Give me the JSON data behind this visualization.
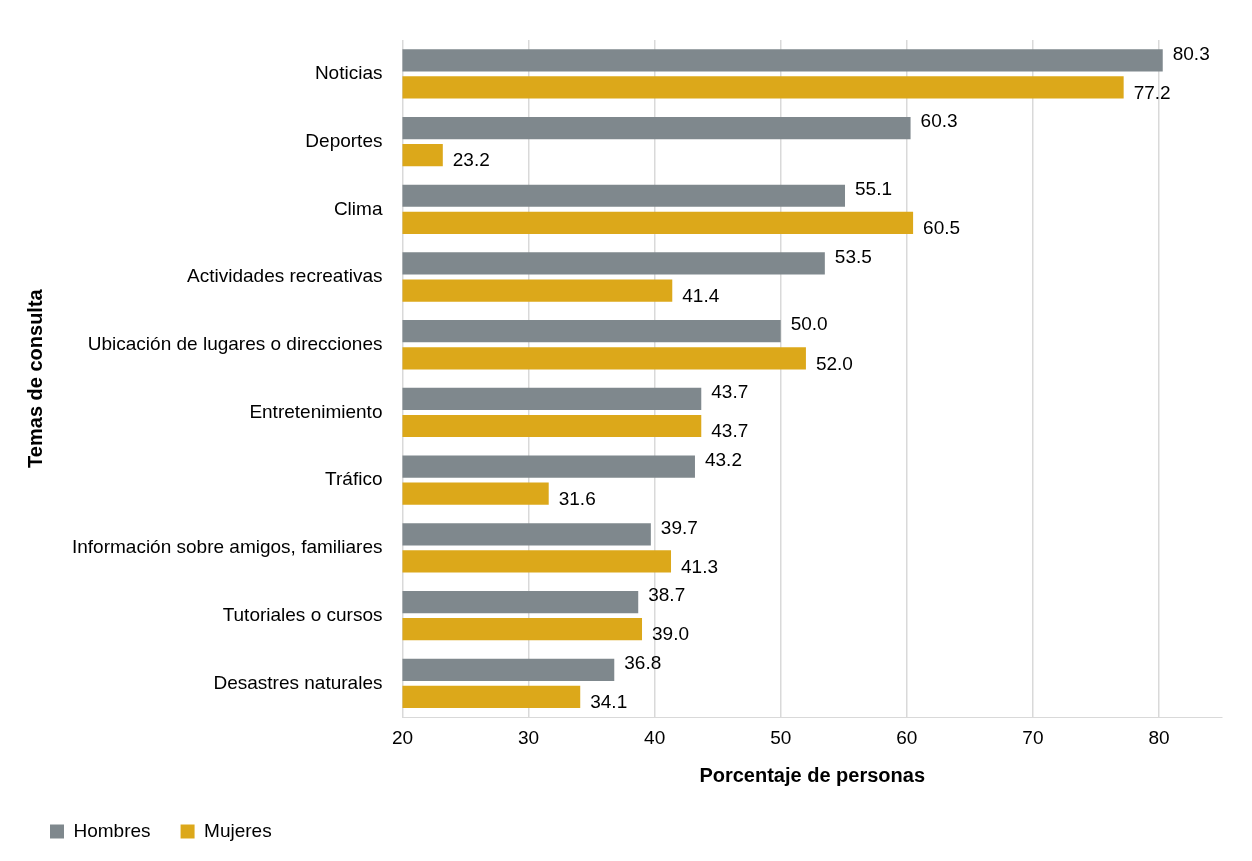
{
  "chart_data": {
    "type": "bar",
    "orientation": "horizontal",
    "xlabel": "Porcentaje de personas",
    "ylabel": "Temas de consulta",
    "categories": [
      "Noticias",
      "Deportes",
      "Clima",
      "Actividades recreativas",
      "Ubicación de lugares o direcciones",
      "Entretenimiento",
      "Tráfico",
      "Información sobre amigos, familiares",
      "Tutoriales o cursos",
      "Desastres naturales"
    ],
    "series": [
      {
        "name": "Hombres",
        "color": "#7f888d",
        "values": [
          80.3,
          60.3,
          55.1,
          53.5,
          50.0,
          43.7,
          43.2,
          39.7,
          38.7,
          36.8
        ],
        "value_labels": [
          "80.3",
          "60.3",
          "55.1",
          "53.5",
          "50.0",
          "43.7",
          "43.2",
          "39.7",
          "38.7",
          "36.8"
        ]
      },
      {
        "name": "Mujeres",
        "color": "#dca81a",
        "values": [
          77.2,
          23.2,
          60.5,
          41.4,
          52.0,
          43.7,
          31.6,
          41.3,
          39.0,
          34.1
        ],
        "value_labels": [
          "77.2",
          "23.2",
          "60.5",
          "41.4",
          "52.0",
          "43.7",
          "31.6",
          "41.3",
          "39.0",
          "34.1"
        ]
      }
    ],
    "xlim": [
      20,
      85
    ],
    "xticks": [
      20,
      30,
      40,
      50,
      60,
      70,
      80
    ],
    "grid": "x",
    "legend": "bottom left"
  }
}
